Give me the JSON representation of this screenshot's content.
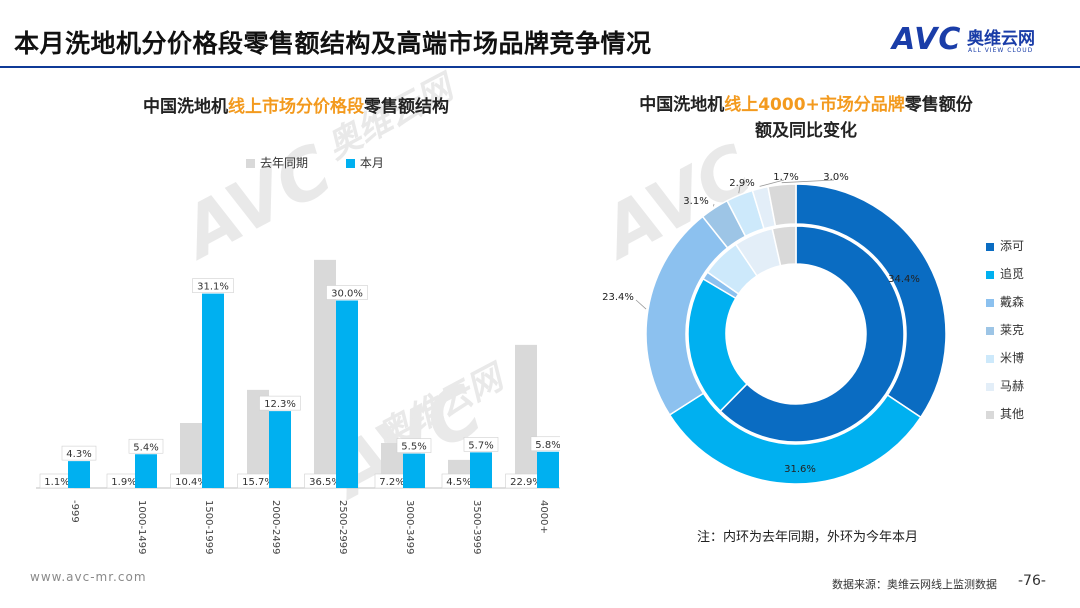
{
  "page": {
    "title": "本月洗地机分价格段零售额结构及高端市场品牌竞争情况",
    "logo": {
      "avc": "AVC",
      "cn": "奥维云网",
      "en": "ALL VIEW CLOUD"
    },
    "watermark": {
      "avc": "AVC",
      "cn": "奥维云网",
      "en": "ALL VIEW CLOUD"
    },
    "footer_url": "www.avc-mr.com",
    "footer_source": "数据来源：奥维云网线上监测数据",
    "page_number": "-76-",
    "note": "注：内环为去年同期，外环为今年本月"
  },
  "colors": {
    "accent": "#f39a1e",
    "last_year": "#d9d9d9",
    "this_month": "#00b0f0",
    "rule": "#0f3a97"
  },
  "chart_data": [
    {
      "type": "bar",
      "title_parts": [
        "中国洗地机",
        "线上市场分价格段",
        "零售额结构"
      ],
      "categories": [
        "-999",
        "1000-1499",
        "1500-1999",
        "2000-2499",
        "2500-2999",
        "3000-3499",
        "3500-3999",
        "4000+"
      ],
      "series": [
        {
          "name": "去年同期",
          "values": [
            1.1,
            1.9,
            10.4,
            15.7,
            36.5,
            7.2,
            4.5,
            22.9
          ],
          "labels": [
            "1.1%",
            "1.9%",
            "10.4%",
            "15.7%",
            "36.5%",
            "7.2%",
            "4.5%",
            "22.9%"
          ]
        },
        {
          "name": "本月",
          "values": [
            4.3,
            5.4,
            31.1,
            12.3,
            30.0,
            5.5,
            5.7,
            5.8
          ],
          "labels": [
            "4.3%",
            "5.4%",
            "31.1%",
            "12.3%",
            "30.0%",
            "5.5%",
            "5.7%",
            "5.8%"
          ]
        }
      ],
      "ylim": [
        0,
        40
      ],
      "unit": "%"
    },
    {
      "type": "pie",
      "subtype": "donut",
      "title_parts": [
        "中国洗地机",
        "线上4000+市场分品牌",
        "零售额份额及同比变化"
      ],
      "title_line2": "额及同比变化",
      "categories": [
        "添可",
        "追觅",
        "戴森",
        "莱克",
        "米博",
        "马赫",
        "其他"
      ],
      "series": [
        {
          "name": "今年本月 (外环)",
          "values": [
            34.4,
            31.6,
            23.4,
            3.1,
            2.9,
            1.7,
            3.0
          ],
          "labels": [
            "34.4%",
            "31.6%",
            "23.4%",
            "3.1%",
            "2.9%",
            "1.7%",
            "3.0%"
          ]
        },
        {
          "name": "去年同期 (内环)",
          "values": [
            53,
            18,
            1,
            0,
            5,
            5,
            3
          ]
        }
      ],
      "colors": [
        "#0a6cc2",
        "#00b0f0",
        "#8cc1ef",
        "#9dc5e6",
        "#cde9fb",
        "#e3eef8",
        "#d9d9d9"
      ]
    }
  ]
}
